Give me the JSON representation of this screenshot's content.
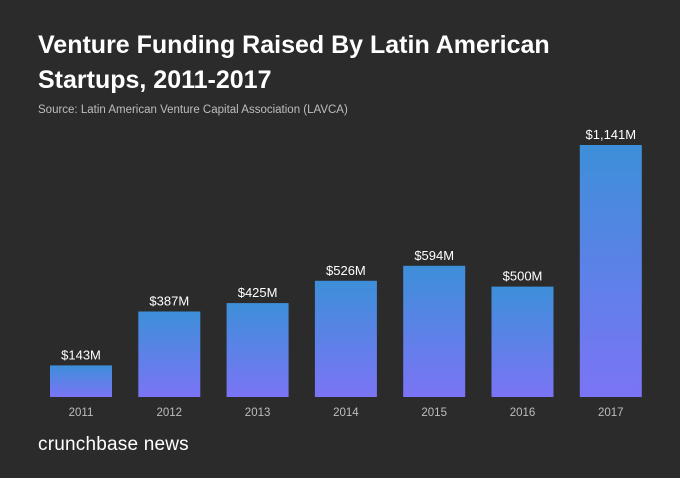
{
  "header": {
    "title": "Venture Funding Raised By Latin American Startups, 2011-2017",
    "source": "Source: Latin American Venture Capital Association (LAVCA)"
  },
  "brand": {
    "logo_text": "crunchbase news"
  },
  "colors": {
    "background": "#2b2b2b",
    "bar_top": "#3d8fd9",
    "bar_bottom": "#7b74f5",
    "text": "#ffffff",
    "muted_text": "#bdbdbd"
  },
  "chart_data": {
    "type": "bar",
    "title": "Venture Funding Raised By Latin American Startups, 2011-2017",
    "categories": [
      "2011",
      "2012",
      "2013",
      "2014",
      "2015",
      "2016",
      "2017"
    ],
    "values": [
      143,
      387,
      425,
      526,
      594,
      500,
      1141
    ],
    "value_labels": [
      "$143M",
      "$387M",
      "$425M",
      "$526M",
      "$594M",
      "$500M",
      "$1,141M"
    ],
    "xlabel": "",
    "ylabel": "",
    "unit": "USD millions",
    "ylim": [
      0,
      1141
    ],
    "grid": false,
    "legend": "none"
  }
}
